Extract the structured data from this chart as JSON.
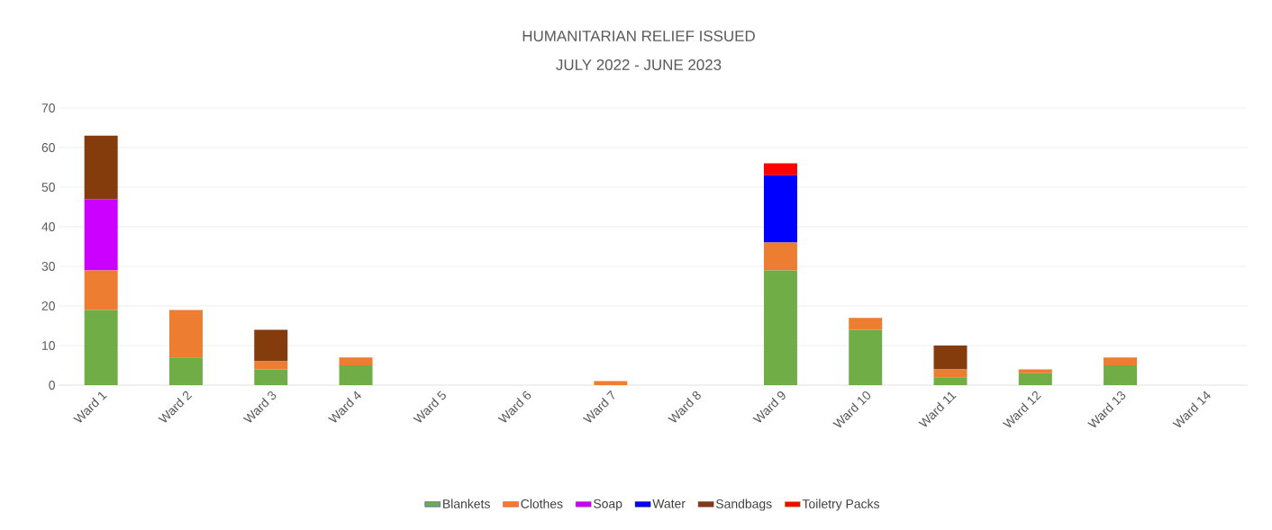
{
  "chart_data": {
    "type": "bar",
    "stacked": true,
    "title": "HUMANITARIAN RELIEF ISSUED",
    "subtitle": "JULY 2022 - JUNE 2023",
    "categories": [
      "Ward 1",
      "Ward 2",
      "Ward 3",
      "Ward 4",
      "Ward 5",
      "Ward 6",
      "Ward 7",
      "Ward 8",
      "Ward 9",
      "Ward 10",
      "Ward 11",
      "Ward 12",
      "Ward 13",
      "Ward 14"
    ],
    "series": [
      {
        "name": "Blankets",
        "color": "#70ad47",
        "values": [
          19,
          7,
          4,
          5,
          0,
          0,
          0,
          0,
          29,
          14,
          2,
          3,
          5,
          0
        ]
      },
      {
        "name": "Clothes",
        "color": "#ed7d31",
        "values": [
          10,
          12,
          2,
          2,
          0,
          0,
          1,
          0,
          7,
          3,
          2,
          1,
          2,
          0
        ]
      },
      {
        "name": "Soap",
        "color": "#cc00ff",
        "values": [
          18,
          0,
          0,
          0,
          0,
          0,
          0,
          0,
          0,
          0,
          0,
          0,
          0,
          0
        ]
      },
      {
        "name": "Water",
        "color": "#0000ff",
        "values": [
          0,
          0,
          0,
          0,
          0,
          0,
          0,
          0,
          17,
          0,
          0,
          0,
          0,
          0
        ]
      },
      {
        "name": "Sandbags",
        "color": "#843c0c",
        "values": [
          16,
          0,
          8,
          0,
          0,
          0,
          0,
          0,
          0,
          0,
          6,
          0,
          0,
          0
        ]
      },
      {
        "name": "Toiletry Packs",
        "color": "#ff0000",
        "values": [
          0,
          0,
          0,
          0,
          0,
          0,
          0,
          0,
          3,
          0,
          0,
          0,
          0,
          0
        ]
      }
    ],
    "ylim": [
      0,
      70
    ],
    "yticks": [
      0,
      10,
      20,
      30,
      40,
      50,
      60,
      70
    ],
    "grid": "y",
    "legend": "bottom"
  }
}
